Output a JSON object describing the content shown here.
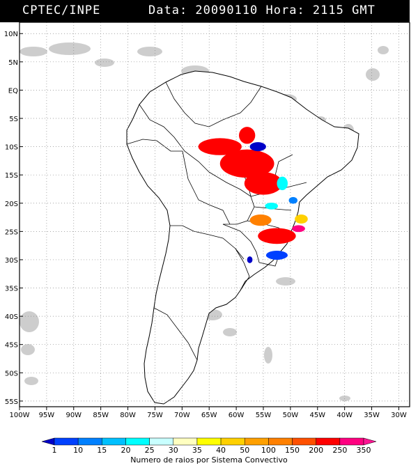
{
  "header": {
    "source": "CPTEC/INPE",
    "datetime": "Data: 20090110 Hora: 2115 GMT"
  },
  "axes": {
    "lat_labels": [
      "10N",
      "5N",
      "EQ",
      "5S",
      "10S",
      "15S",
      "20S",
      "25S",
      "30S",
      "35S",
      "40S",
      "45S",
      "50S",
      "55S"
    ],
    "lat_values": [
      10,
      5,
      0,
      -5,
      -10,
      -15,
      -20,
      -25,
      -30,
      -35,
      -40,
      -45,
      -50,
      -55
    ],
    "lon_labels": [
      "100W",
      "95W",
      "90W",
      "85W",
      "80W",
      "75W",
      "70W",
      "65W",
      "60W",
      "55W",
      "50W",
      "45W",
      "40W",
      "35W",
      "30W"
    ],
    "lon_values": [
      -100,
      -95,
      -90,
      -85,
      -80,
      -75,
      -70,
      -65,
      -60,
      -55,
      -50,
      -45,
      -40,
      -35,
      -30
    ],
    "lon_range": [
      -100,
      -28
    ],
    "lat_range": [
      -56,
      12
    ],
    "grid": "dotted"
  },
  "legend": {
    "caption": "Numero de raios por Sistema Convectivo",
    "ticks": [
      "1",
      "10",
      "15",
      "20",
      "25",
      "30",
      "35",
      "40",
      "50",
      "100",
      "150",
      "200",
      "250",
      "350"
    ],
    "colors": [
      "#0000c8",
      "#0040ff",
      "#0080ff",
      "#00c0ff",
      "#00ffff",
      "#c8ffff",
      "#ffffc0",
      "#ffff00",
      "#ffd000",
      "#ffa000",
      "#ff8000",
      "#ff5000",
      "#ff0000",
      "#ff0080",
      "#ff1493"
    ]
  },
  "clusters": [
    {
      "lon": -63,
      "lat": -10,
      "rx": 4,
      "ry": 1.5,
      "color": "#ff0000"
    },
    {
      "lon": -58,
      "lat": -13,
      "rx": 5,
      "ry": 2.5,
      "color": "#ff0000"
    },
    {
      "lon": -55,
      "lat": -16.5,
      "rx": 3.5,
      "ry": 2,
      "color": "#ff0000"
    },
    {
      "lon": -58,
      "lat": -8,
      "rx": 1.5,
      "ry": 1.5,
      "color": "#ff0000"
    },
    {
      "lon": -56,
      "lat": -10,
      "rx": 1.5,
      "ry": 0.8,
      "color": "#0000c8"
    },
    {
      "lon": -51.5,
      "lat": -16.5,
      "rx": 1,
      "ry": 1.2,
      "color": "#00ffff"
    },
    {
      "lon": -53.5,
      "lat": -20.5,
      "rx": 1.2,
      "ry": 0.6,
      "color": "#00ffff"
    },
    {
      "lon": -49.5,
      "lat": -19.5,
      "rx": 0.8,
      "ry": 0.6,
      "color": "#0080ff"
    },
    {
      "lon": -55.5,
      "lat": -23,
      "rx": 2,
      "ry": 1,
      "color": "#ff8000"
    },
    {
      "lon": -48,
      "lat": -22.8,
      "rx": 1.2,
      "ry": 0.8,
      "color": "#ffd000"
    },
    {
      "lon": -52.5,
      "lat": -25.8,
      "rx": 3.5,
      "ry": 1.4,
      "color": "#ff0000"
    },
    {
      "lon": -48.5,
      "lat": -24.5,
      "rx": 1.2,
      "ry": 0.6,
      "color": "#ff0080"
    },
    {
      "lon": -52.5,
      "lat": -29.2,
      "rx": 2,
      "ry": 0.8,
      "color": "#0040ff"
    },
    {
      "lon": -57.5,
      "lat": -30,
      "rx": 0.5,
      "ry": 0.6,
      "color": "#0000c8"
    }
  ]
}
